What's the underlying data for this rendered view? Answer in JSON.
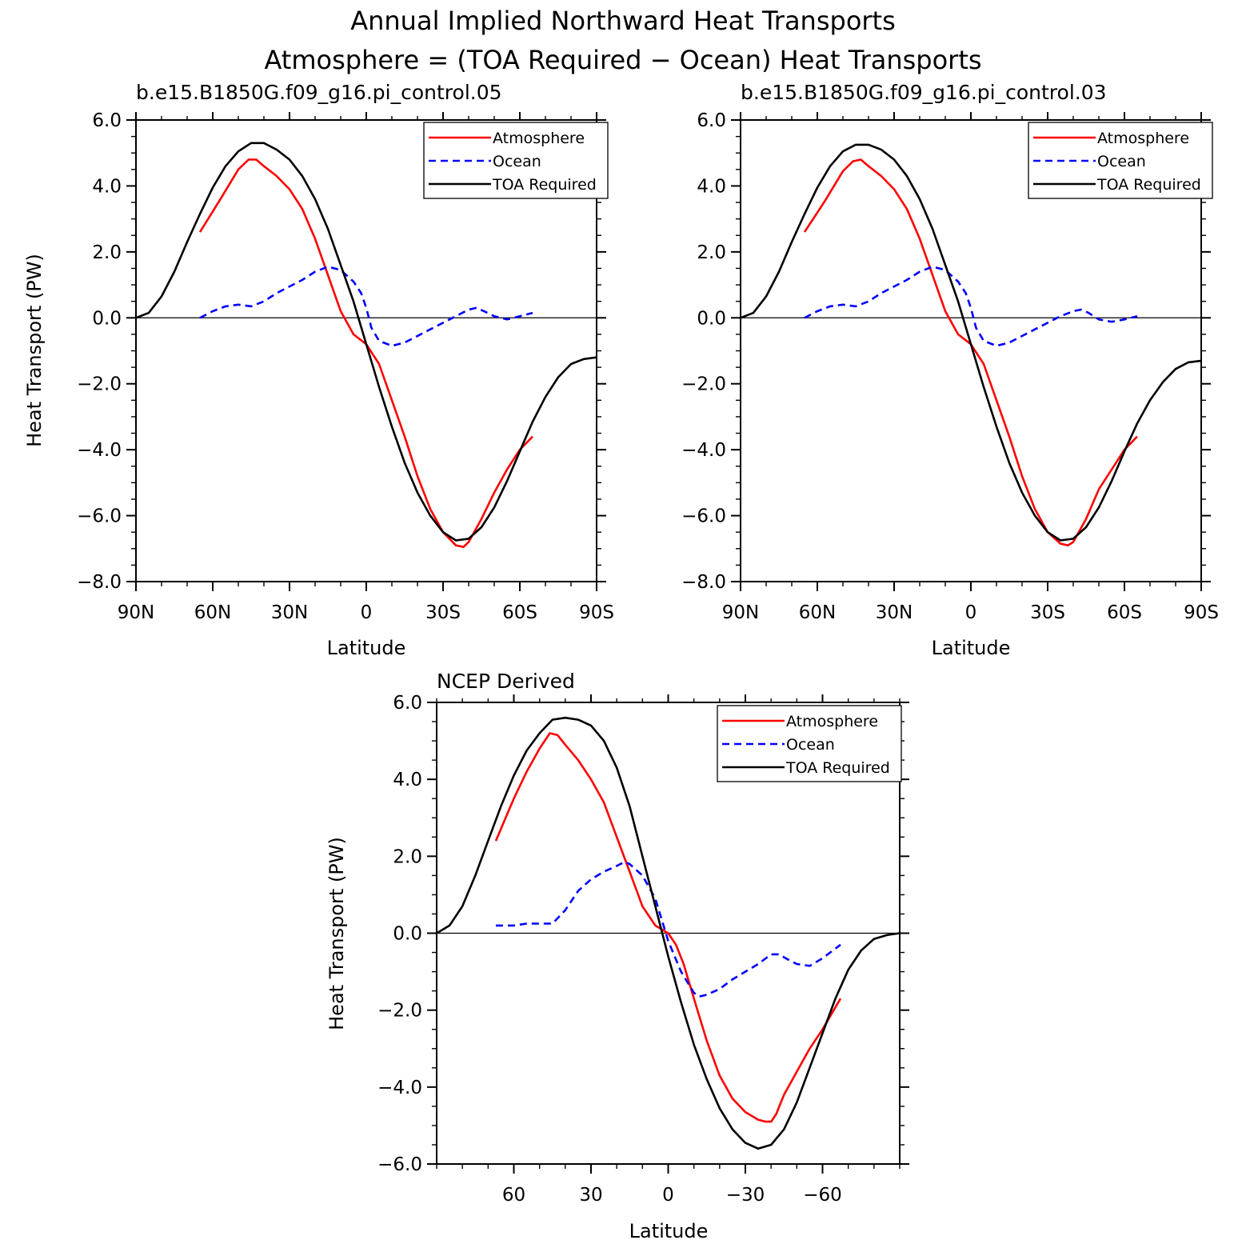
{
  "titles": {
    "line1": "Annual Implied Northward Heat Transports",
    "line2": "Atmosphere = (TOA Required − Ocean) Heat Transports"
  },
  "colors": {
    "atmosphere": "#ff0000",
    "ocean": "#0000ff",
    "toa": "#000000"
  },
  "chart_data": [
    {
      "type": "line",
      "subtitle": "b.e15.B1850G.f09_g16.pi_control.05",
      "xlabel": "Latitude",
      "ylabel": "Heat Transport (PW)",
      "xlim": [
        90,
        -90
      ],
      "ylim": [
        -8,
        6
      ],
      "x_ticks": [
        90,
        60,
        30,
        0,
        -30,
        -60,
        -90
      ],
      "x_tick_labels": [
        "90N",
        "60N",
        "30N",
        "0",
        "30S",
        "60S",
        "90S"
      ],
      "y_ticks": [
        6,
        4,
        2,
        0,
        -2,
        -4,
        -6,
        -8
      ],
      "y_tick_labels": [
        "6.0",
        "4.0",
        "2.0",
        "0.0",
        "−2.0",
        "−4.0",
        "−6.0",
        "−8.0"
      ],
      "legend": {
        "position": "top-right",
        "entries": [
          "Atmosphere",
          "Ocean",
          "TOA Required"
        ]
      },
      "series": [
        {
          "name": "Atmosphere",
          "color": "#ff0000",
          "dash": "solid",
          "x": [
            65,
            57,
            50,
            46,
            43,
            40,
            35,
            30,
            25,
            20,
            15,
            10,
            5,
            0,
            -5,
            -10,
            -15,
            -20,
            -25,
            -30,
            -35,
            -38,
            -40,
            -45,
            -50,
            -55,
            -60,
            -65
          ],
          "y": [
            2.6,
            3.6,
            4.5,
            4.8,
            4.8,
            4.6,
            4.3,
            3.9,
            3.3,
            2.4,
            1.3,
            0.2,
            -0.5,
            -0.8,
            -1.4,
            -2.5,
            -3.6,
            -4.8,
            -5.8,
            -6.5,
            -6.9,
            -6.95,
            -6.8,
            -6.1,
            -5.3,
            -4.6,
            -4.0,
            -3.6
          ]
        },
        {
          "name": "Ocean",
          "color": "#0000ff",
          "dash": "dashed",
          "x": [
            65,
            60,
            55,
            50,
            45,
            40,
            35,
            30,
            25,
            20,
            15,
            10,
            5,
            2,
            0,
            -2,
            -5,
            -10,
            -15,
            -20,
            -25,
            -30,
            -35,
            -40,
            -43,
            -46,
            -50,
            -55,
            -60,
            -65
          ],
          "y": [
            0.0,
            0.2,
            0.35,
            0.4,
            0.35,
            0.5,
            0.75,
            0.95,
            1.15,
            1.4,
            1.55,
            1.45,
            1.1,
            0.75,
            0.3,
            -0.3,
            -0.7,
            -0.85,
            -0.75,
            -0.55,
            -0.35,
            -0.15,
            0.05,
            0.25,
            0.3,
            0.2,
            0.05,
            -0.05,
            0.05,
            0.15
          ]
        },
        {
          "name": "TOA Required",
          "color": "#000000",
          "dash": "solid",
          "x": [
            90,
            85,
            80,
            75,
            70,
            65,
            60,
            55,
            50,
            45,
            40,
            35,
            30,
            25,
            20,
            15,
            10,
            5,
            0,
            -5,
            -10,
            -15,
            -20,
            -25,
            -30,
            -35,
            -40,
            -45,
            -50,
            -55,
            -60,
            -65,
            -70,
            -75,
            -80,
            -85,
            -90
          ],
          "y": [
            0.0,
            0.15,
            0.65,
            1.4,
            2.3,
            3.15,
            3.95,
            4.6,
            5.05,
            5.3,
            5.3,
            5.1,
            4.8,
            4.3,
            3.6,
            2.7,
            1.6,
            0.5,
            -0.8,
            -2.1,
            -3.3,
            -4.4,
            -5.3,
            -6.0,
            -6.5,
            -6.75,
            -6.7,
            -6.35,
            -5.75,
            -4.95,
            -4.05,
            -3.15,
            -2.4,
            -1.8,
            -1.4,
            -1.25,
            -1.2
          ]
        }
      ]
    },
    {
      "type": "line",
      "subtitle": "b.e15.B1850G.f09_g16.pi_control.03",
      "xlabel": "Latitude",
      "ylabel": "Heat Transport (PW)",
      "xlim": [
        90,
        -90
      ],
      "ylim": [
        -8,
        6
      ],
      "x_ticks": [
        90,
        60,
        30,
        0,
        -30,
        -60,
        -90
      ],
      "x_tick_labels": [
        "90N",
        "60N",
        "30N",
        "0",
        "30S",
        "60S",
        "90S"
      ],
      "y_ticks": [
        6,
        4,
        2,
        0,
        -2,
        -4,
        -6,
        -8
      ],
      "y_tick_labels": [
        "6.0",
        "4.0",
        "2.0",
        "0.0",
        "−2.0",
        "−4.0",
        "−6.0",
        "−8.0"
      ],
      "legend": {
        "position": "top-right",
        "entries": [
          "Atmosphere",
          "Ocean",
          "TOA Required"
        ]
      },
      "series": [
        {
          "name": "Atmosphere",
          "color": "#ff0000",
          "dash": "solid",
          "x": [
            65,
            57,
            50,
            46,
            43,
            40,
            35,
            30,
            25,
            20,
            15,
            10,
            5,
            0,
            -5,
            -10,
            -15,
            -20,
            -25,
            -30,
            -35,
            -38,
            -40,
            -45,
            -50,
            -55,
            -60,
            -65
          ],
          "y": [
            2.6,
            3.55,
            4.45,
            4.75,
            4.8,
            4.6,
            4.3,
            3.9,
            3.3,
            2.4,
            1.3,
            0.2,
            -0.5,
            -0.8,
            -1.4,
            -2.5,
            -3.6,
            -4.8,
            -5.8,
            -6.5,
            -6.85,
            -6.9,
            -6.8,
            -6.1,
            -5.2,
            -4.6,
            -4.0,
            -3.6
          ]
        },
        {
          "name": "Ocean",
          "color": "#0000ff",
          "dash": "dashed",
          "x": [
            65,
            60,
            55,
            50,
            45,
            40,
            35,
            30,
            25,
            20,
            15,
            10,
            5,
            2,
            0,
            -2,
            -5,
            -10,
            -15,
            -20,
            -25,
            -30,
            -35,
            -40,
            -43,
            -46,
            -50,
            -55,
            -60,
            -65
          ],
          "y": [
            0.0,
            0.2,
            0.35,
            0.4,
            0.35,
            0.5,
            0.75,
            0.95,
            1.15,
            1.4,
            1.55,
            1.45,
            1.1,
            0.75,
            0.3,
            -0.3,
            -0.7,
            -0.85,
            -0.75,
            -0.55,
            -0.35,
            -0.15,
            0.05,
            0.2,
            0.25,
            0.15,
            -0.05,
            -0.12,
            -0.05,
            0.05
          ]
        },
        {
          "name": "TOA Required",
          "color": "#000000",
          "dash": "solid",
          "x": [
            90,
            85,
            80,
            75,
            70,
            65,
            60,
            55,
            50,
            45,
            40,
            35,
            30,
            25,
            20,
            15,
            10,
            5,
            0,
            -5,
            -10,
            -15,
            -20,
            -25,
            -30,
            -35,
            -40,
            -45,
            -50,
            -55,
            -60,
            -65,
            -70,
            -75,
            -80,
            -85,
            -90
          ],
          "y": [
            0.0,
            0.15,
            0.65,
            1.4,
            2.3,
            3.15,
            3.95,
            4.6,
            5.05,
            5.25,
            5.25,
            5.1,
            4.8,
            4.3,
            3.6,
            2.7,
            1.6,
            0.5,
            -0.8,
            -2.1,
            -3.3,
            -4.4,
            -5.3,
            -6.0,
            -6.5,
            -6.75,
            -6.7,
            -6.35,
            -5.75,
            -4.95,
            -4.05,
            -3.2,
            -2.5,
            -1.95,
            -1.55,
            -1.35,
            -1.3
          ]
        }
      ]
    },
    {
      "type": "line",
      "subtitle": "NCEP Derived",
      "xlabel": "Latitude",
      "ylabel": "Heat Transport (PW)",
      "xlim": [
        90,
        -90
      ],
      "ylim": [
        -6,
        6
      ],
      "x_ticks": [
        60,
        30,
        0,
        -30,
        -60
      ],
      "x_tick_labels": [
        "60",
        "30",
        "0",
        "−30",
        "−60"
      ],
      "y_ticks": [
        6,
        4,
        2,
        0,
        -2,
        -4,
        -6
      ],
      "y_tick_labels": [
        "6.0",
        "4.0",
        "2.0",
        "0.0",
        "−2.0",
        "−4.0",
        "−6.0"
      ],
      "legend": {
        "position": "top-right",
        "entries": [
          "Atmosphere",
          "Ocean",
          "TOA Required"
        ]
      },
      "series": [
        {
          "name": "Atmosphere",
          "color": "#ff0000",
          "dash": "solid",
          "x": [
            67,
            60,
            55,
            50,
            46,
            43,
            40,
            35,
            30,
            25,
            20,
            15,
            10,
            5,
            0,
            -3,
            -6,
            -10,
            -15,
            -20,
            -25,
            -30,
            -35,
            -38,
            -40,
            -42,
            -45,
            -50,
            -55,
            -60,
            -67
          ],
          "y": [
            2.4,
            3.5,
            4.2,
            4.8,
            5.2,
            5.15,
            4.9,
            4.5,
            4.0,
            3.4,
            2.5,
            1.6,
            0.7,
            0.2,
            0.0,
            -0.3,
            -0.8,
            -1.7,
            -2.8,
            -3.7,
            -4.3,
            -4.65,
            -4.85,
            -4.9,
            -4.9,
            -4.7,
            -4.2,
            -3.6,
            -3.0,
            -2.5,
            -1.7
          ]
        },
        {
          "name": "Ocean",
          "color": "#0000ff",
          "dash": "dashed",
          "x": [
            67,
            60,
            55,
            50,
            45,
            40,
            35,
            30,
            25,
            20,
            17,
            15,
            10,
            5,
            0,
            -5,
            -10,
            -12,
            -15,
            -20,
            -25,
            -30,
            -35,
            -40,
            -43,
            -47,
            -50,
            -55,
            -60,
            -67
          ],
          "y": [
            0.2,
            0.2,
            0.25,
            0.25,
            0.25,
            0.6,
            1.1,
            1.4,
            1.6,
            1.75,
            1.85,
            1.8,
            1.5,
            0.9,
            -0.2,
            -1.0,
            -1.55,
            -1.65,
            -1.6,
            -1.45,
            -1.2,
            -1.0,
            -0.8,
            -0.55,
            -0.55,
            -0.7,
            -0.8,
            -0.85,
            -0.65,
            -0.3
          ]
        },
        {
          "name": "TOA Required",
          "color": "#000000",
          "dash": "solid",
          "x": [
            90,
            85,
            80,
            75,
            70,
            65,
            60,
            55,
            50,
            45,
            40,
            35,
            30,
            25,
            20,
            15,
            10,
            5,
            0,
            -5,
            -10,
            -15,
            -20,
            -25,
            -30,
            -35,
            -40,
            -45,
            -50,
            -55,
            -60,
            -65,
            -70,
            -75,
            -80,
            -85,
            -90
          ],
          "y": [
            0.0,
            0.2,
            0.7,
            1.5,
            2.4,
            3.3,
            4.1,
            4.75,
            5.2,
            5.55,
            5.6,
            5.55,
            5.4,
            5.0,
            4.3,
            3.3,
            2.0,
            0.7,
            -0.6,
            -1.8,
            -2.9,
            -3.8,
            -4.55,
            -5.1,
            -5.45,
            -5.6,
            -5.5,
            -5.1,
            -4.4,
            -3.5,
            -2.6,
            -1.7,
            -0.95,
            -0.45,
            -0.15,
            -0.05,
            0.0
          ]
        }
      ]
    }
  ]
}
